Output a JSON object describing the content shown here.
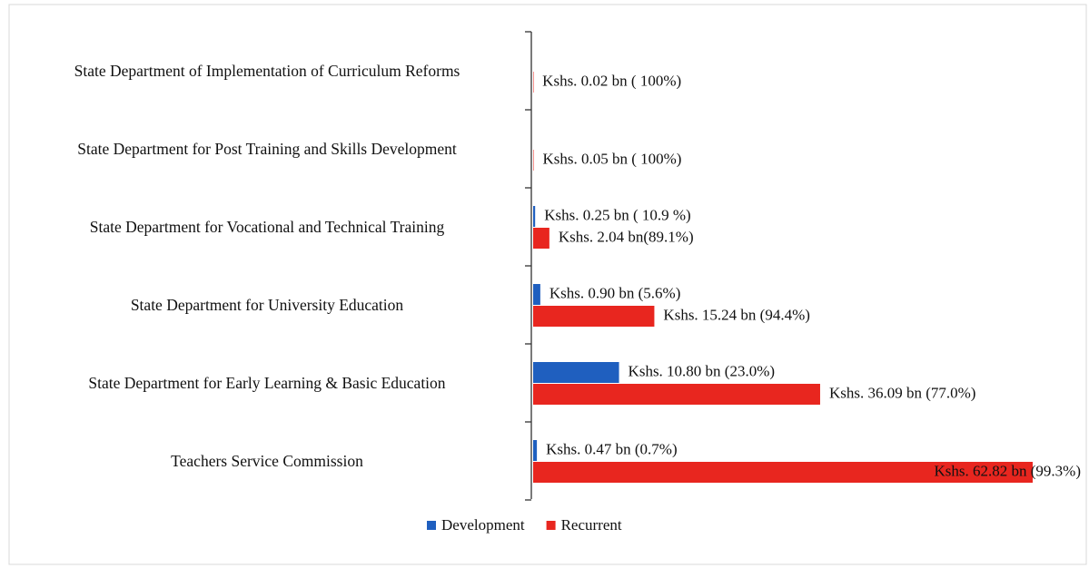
{
  "chart_data": {
    "type": "hbar",
    "categories": [
      "State Department of Implementation of Curriculum Reforms",
      "State Department for Post Training and Skills Development",
      "State Department for Vocational and Technical Training",
      "State Department for University Education",
      "State Department for Early Learning & Basic Education",
      "Teachers Service Commission"
    ],
    "series": [
      {
        "name": "Development",
        "color": "#1f5fbf",
        "values": [
          null,
          null,
          0.25,
          0.9,
          10.8,
          0.47
        ],
        "value_labels": [
          null,
          null,
          "Kshs. 0.25  bn ( 10.9 %)",
          "Kshs. 0.90 bn (5.6%)",
          "Kshs. 10.80 bn (23.0%)",
          "Kshs. 0.47 bn (0.7%)"
        ]
      },
      {
        "name": "Recurrent",
        "color": "#e8261f",
        "values": [
          0.02,
          0.05,
          2.04,
          15.24,
          36.09,
          62.82
        ],
        "value_labels": [
          "Kshs. 0.02 bn ( 100%)",
          "Kshs. 0.05 bn ( 100%)",
          "Kshs. 2.04 bn(89.1%)",
          "Kshs. 15.24 bn (94.4%)",
          "Kshs. 36.09 bn (77.0%)",
          "Kshs. 62.82 bn (99.3%)"
        ]
      }
    ],
    "legend": "bottom"
  }
}
